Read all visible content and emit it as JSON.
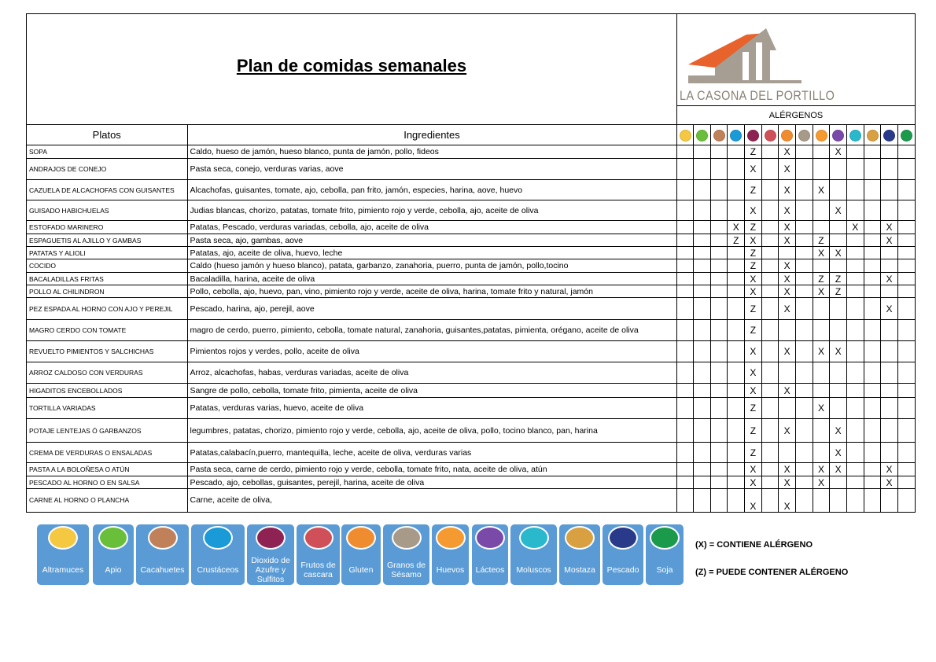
{
  "title": "Plan de comidas semanales",
  "logo_text": "LA CASONA DEL PORTILLO",
  "allergens_header": "ALÉRGENOS",
  "columns": {
    "platos": "Platos",
    "ingredientes": "Ingredientes"
  },
  "allergens": [
    {
      "name": "Altramuces",
      "icon": "lupin-icon",
      "color": "#f5c842"
    },
    {
      "name": "Apio",
      "icon": "celery-icon",
      "color": "#6abf3a"
    },
    {
      "name": "Cacahuetes",
      "icon": "peanut-icon",
      "color": "#c0805a"
    },
    {
      "name": "Crustáceos",
      "icon": "crab-icon",
      "color": "#1a9ad6"
    },
    {
      "name": "Dioxido de\nAzufre y\nSulfitos",
      "icon": "sulfite-icon",
      "color": "#8e2353"
    },
    {
      "name": "Frutos de\ncascara",
      "icon": "nut-icon",
      "color": "#d0505a"
    },
    {
      "name": "Gluten",
      "icon": "wheat-icon",
      "color": "#f08c30"
    },
    {
      "name": "Granos de\nSésamo",
      "icon": "sesame-icon",
      "color": "#a89a88"
    },
    {
      "name": "Huevos",
      "icon": "egg-icon",
      "color": "#f59a30"
    },
    {
      "name": "Lácteos",
      "icon": "milk-jug-icon",
      "color": "#7a4aa8"
    },
    {
      "name": "Moluscos",
      "icon": "shell-icon",
      "color": "#2ab8cc"
    },
    {
      "name": "Mostaza",
      "icon": "mustard-icon",
      "color": "#d8a040"
    },
    {
      "name": "Pescado",
      "icon": "fish-icon",
      "color": "#2a3a8a"
    },
    {
      "name": "Soja",
      "icon": "soy-icon",
      "color": "#1a9a4a"
    }
  ],
  "rows": [
    {
      "plato": "SOPA",
      "ingredientes": "Caldo, hueso de jamón, hueso blanco, punta de jamón, pollo, fideos",
      "marks": {
        "4": "Z",
        "6": "X",
        "9": "X"
      }
    },
    {
      "plato": "ANDRAJOS DE CONEJO",
      "ingredientes": "Pasta seca, conejo, verduras varias, aove",
      "marks": {
        "4": "X",
        "6": "X"
      }
    },
    {
      "plato": "CAZUELA DE ALCACHOFAS CON GUISANTES",
      "ingredientes": "Alcachofas, guisantes, tomate, ajo, cebolla, pan frito, jamón, especies, harina, aove, huevo",
      "marks": {
        "4": "Z",
        "6": "X",
        "8": "X"
      }
    },
    {
      "plato": "GUISADO HABICHUELAS",
      "ingredientes": "Judias blancas, chorizo, patatas, tomate frito, pimiento rojo y verde, cebolla, ajo, aceite de oliva",
      "marks": {
        "4": "X",
        "6": "X",
        "9": "X"
      }
    },
    {
      "plato": "ESTOFADO MARINERO",
      "ingredientes": "Patatas, Pescado, verduras variadas, cebolla, ajo, aceite de oliva",
      "marks": {
        "3": "X",
        "4": "Z",
        "6": "X",
        "10": "X",
        "12": "X"
      }
    },
    {
      "plato": "ESPAGUETIS AL AJILLO Y GAMBAS",
      "ingredientes": "Pasta seca, ajo, gambas, aove",
      "marks": {
        "3": "Z",
        "4": "X",
        "6": "X",
        "8": "Z",
        "12": "X"
      }
    },
    {
      "plato": "PATATAS Y ALIOLI",
      "ingredientes": "Patatas, ajo, aceite de oliva, huevo, leche",
      "marks": {
        "4": "Z",
        "8": "X",
        "9": "X"
      }
    },
    {
      "plato": "COCIDO",
      "ingredientes": "Caldo (hueso jamón y hueso blanco), patata, garbanzo, zanahoria, puerro, punta de jamón, pollo,tocino",
      "marks": {
        "4": "Z",
        "6": "X"
      }
    },
    {
      "plato": "BACALADILLAS  FRITAS",
      "ingredientes": "Bacaladilla, harina, aceite de oliva",
      "marks": {
        "4": "X",
        "6": "X",
        "8": "Z",
        "9": "Z",
        "12": "X"
      }
    },
    {
      "plato": "POLLO AL CHILINDRON",
      "ingredientes": "Pollo, cebolla, ajo, huevo, pan, vino, pimiento rojo y verde, aceite de oliva, harina, tomate frito y natural, jamón",
      "marks": {
        "4": "X",
        "6": "X",
        "8": "X",
        "9": "Z"
      }
    },
    {
      "plato": "PEZ ESPADA AL HORNO CON AJO Y PEREJIL",
      "ingredientes": "Pescado, harina, ajo, perejil,  aove",
      "marks": {
        "4": "Z",
        "6": "X",
        "12": "X"
      }
    },
    {
      "plato": "MAGRO CERDO CON TOMATE",
      "ingredientes": "magro de cerdo, puerro, pimiento, cebolla, tomate natural, zanahoria, guisantes,patatas, pimienta, orégano, aceite de oliva",
      "marks": {
        "4": "Z"
      }
    },
    {
      "plato": "REVUELTO PIMIENTOS Y SALCHICHAS",
      "ingredientes": "Pimientos rojos y verdes, pollo,  aceite de oliva",
      "marks": {
        "4": "X",
        "6": "X",
        "8": "X",
        "9": "X"
      }
    },
    {
      "plato": "ARROZ CALDOSO CON VERDURAS",
      "ingredientes": "Arroz, alcachofas, habas, verduras variadas, aceite de oliva",
      "marks": {
        "4": "X"
      }
    },
    {
      "plato": "HIGADITOS ENCEBOLLADOS",
      "ingredientes": "Sangre de pollo, cebolla, tomate frito, pimienta, aceite de oliva",
      "marks": {
        "4": "X",
        "6": "X"
      }
    },
    {
      "plato": "TORTILLA VARIADAS",
      "ingredientes": "Patatas, verduras varias, huevo, aceite de oliva",
      "marks": {
        "4": "Z",
        "8": "X"
      }
    },
    {
      "plato": "POTAJE LENTEJAS Ó GARBANZOS",
      "ingredientes": "legumbres, patatas, chorizo, pimiento rojo y verde, cebolla, ajo, aceite de oliva, pollo, tocino blanco, pan, harina",
      "marks": {
        "4": "Z",
        "6": "X",
        "9": "X"
      }
    },
    {
      "plato": "CREMA DE VERDURAS  O ENSALADAS",
      "ingredientes": "Patatas,calabacín,puerro, mantequilla, leche, aceite de oliva, verduras varias",
      "marks": {
        "4": "Z",
        "9": "X"
      }
    },
    {
      "plato": "PASTA A LA BOLOÑESA O ATÚN",
      "ingredientes": "Pasta seca, carne de cerdo, pimiento rojo y verde, cebolla, tomate frito, nata, aceite de oliva, atún",
      "marks": {
        "4": "X",
        "6": "X",
        "8": "X",
        "9": "X",
        "12": "X"
      }
    },
    {
      "plato": "PESCADO AL HORNO O EN SALSA",
      "ingredientes": "Pescado, ajo, cebollas, guisantes, perejil, harina, aceite de oliva",
      "marks": {
        "4": "X",
        "6": "X",
        "8": "X",
        "12": "X"
      }
    },
    {
      "plato": "CARNE AL HORNO O PLANCHA",
      "ingredientes": "Carne, aceite de oliva,",
      "marks": {
        "4": "X",
        "6": "X"
      }
    }
  ],
  "notes": {
    "contains": "(X) = CONTIENE ALÉRGENO",
    "may_contain": "(Z) = PUEDE CONTENER ALÉRGENO"
  }
}
